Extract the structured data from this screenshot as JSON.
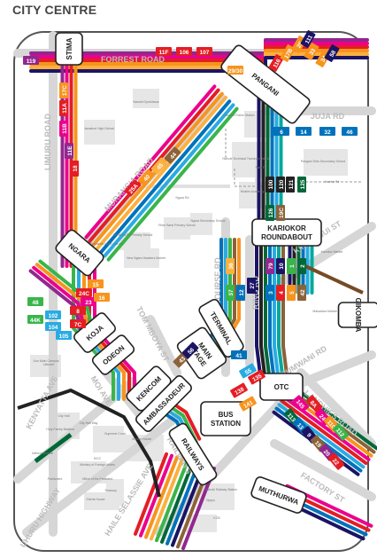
{
  "title": "CITY CENTRE",
  "roads": [
    {
      "name": "FORREST ROAD",
      "dir": "h"
    },
    {
      "name": "LIMURU ROAD",
      "dir": "v"
    },
    {
      "name": "MURANG'A ROAD",
      "dir": "d"
    },
    {
      "name": "JUJA RD",
      "dir": "h"
    },
    {
      "name": "RACECOURSE RD",
      "dir": "v"
    },
    {
      "name": "RING RD",
      "dir": "v"
    },
    {
      "name": "KINYANJUI ST",
      "dir": "d"
    },
    {
      "name": "TOM MBOYA ST",
      "dir": "d"
    },
    {
      "name": "MOI AVE",
      "dir": "d"
    },
    {
      "name": "KENYATTA AVE",
      "dir": "d"
    },
    {
      "name": "UHURU HIGHWAY",
      "dir": "d"
    },
    {
      "name": "HAILE SELASSIE AVE",
      "dir": "d"
    },
    {
      "name": "RAILWAYS",
      "dir": "d"
    },
    {
      "name": "LANDHIES ROAD",
      "dir": "d"
    },
    {
      "name": "PUMWANI RD",
      "dir": "d"
    },
    {
      "name": "FACTORY ST",
      "dir": "d"
    }
  ],
  "landmarks": [
    "Nairobi Gymkhana",
    "Jamahuri High School",
    "Pangani Police Station",
    "Nairobi Technical Training Institute",
    "Pangani Girls Secondary School",
    "Muslim Academy",
    "Ngara Rd",
    "Park Rd",
    "Hombe Rd",
    "Ngara Secondary School",
    "River Bank Primary School",
    "Murang'a Rd Primary School",
    "Parklands Hotel Nairobi",
    "New Ngara Hawkers Market",
    "Uon Main Campus",
    "Lifecare",
    "Kariokor Market",
    "Makadara Market",
    "City Hall",
    "Holy Family Basilica",
    "City Hall Way",
    "Supreme Court",
    "Jeevan House",
    "Intercontinental",
    "KICC",
    "Ministry of Foreign Affairs",
    "Parliament",
    "Office of the President",
    "Treasury",
    "Sheria House",
    "Nairobi Railway Station",
    "Nyayo",
    "KCB"
  ],
  "stops": [
    {
      "id": "stima",
      "name": "STIMA"
    },
    {
      "id": "pangani",
      "name": "PANGANI"
    },
    {
      "id": "ngara",
      "name": "NGARA"
    },
    {
      "id": "kariokor",
      "name": "KARIOKOR ROUNDABOUT"
    },
    {
      "id": "gikomba",
      "name": "GIKOMBA"
    },
    {
      "id": "koja",
      "name": "KOJA"
    },
    {
      "id": "odeon",
      "name": "ODEON"
    },
    {
      "id": "terminal",
      "name": "TERMINAL"
    },
    {
      "id": "mainstage",
      "name": "MAIN STAGE"
    },
    {
      "id": "kencom",
      "name": "KENCOM"
    },
    {
      "id": "ambassadeur",
      "name": "AMBASSADEUR"
    },
    {
      "id": "otc",
      "name": "OTC"
    },
    {
      "id": "busstation",
      "name": "BUS STATION"
    },
    {
      "id": "railways",
      "name": "RAILWAYS"
    },
    {
      "id": "muthurwa",
      "name": "MUTHURWA"
    }
  ],
  "route_labels": [
    "119",
    "11F",
    "106",
    "107",
    "29/30",
    "116",
    "17B",
    "25",
    "33",
    "34",
    "111",
    "58",
    "17C",
    "11A",
    "11B",
    "11E",
    "18",
    "6",
    "14",
    "32",
    "46",
    "100",
    "120",
    "121",
    "125",
    "126",
    "19C",
    "25A",
    "40",
    "45",
    "44",
    "48",
    "44K",
    "102",
    "104",
    "105",
    "8",
    "7C",
    "24C",
    "23",
    "15",
    "16",
    "36",
    "37",
    "12",
    "27",
    "79",
    "10",
    "1",
    "2",
    "3",
    "4",
    "5",
    "42",
    "43",
    "56",
    "41",
    "55",
    "135",
    "138",
    "141",
    "145",
    "8A",
    "24",
    "110",
    "112",
    "113",
    "13",
    "9",
    "19",
    "20",
    "22"
  ],
  "colors": {
    "orange": "#f7941d",
    "red": "#e31e24",
    "purple": "#92278f",
    "pink": "#ec008c",
    "blue": "#0072bc",
    "lightblue": "#29abe2",
    "green": "#39b54a",
    "darkgreen": "#006838",
    "olive": "#8c6239",
    "navy": "#1b1464",
    "grey": "#b3b3b3",
    "black": "#222222",
    "teal": "#00a99d",
    "yellow": "#fbb040",
    "brown": "#754c24"
  }
}
